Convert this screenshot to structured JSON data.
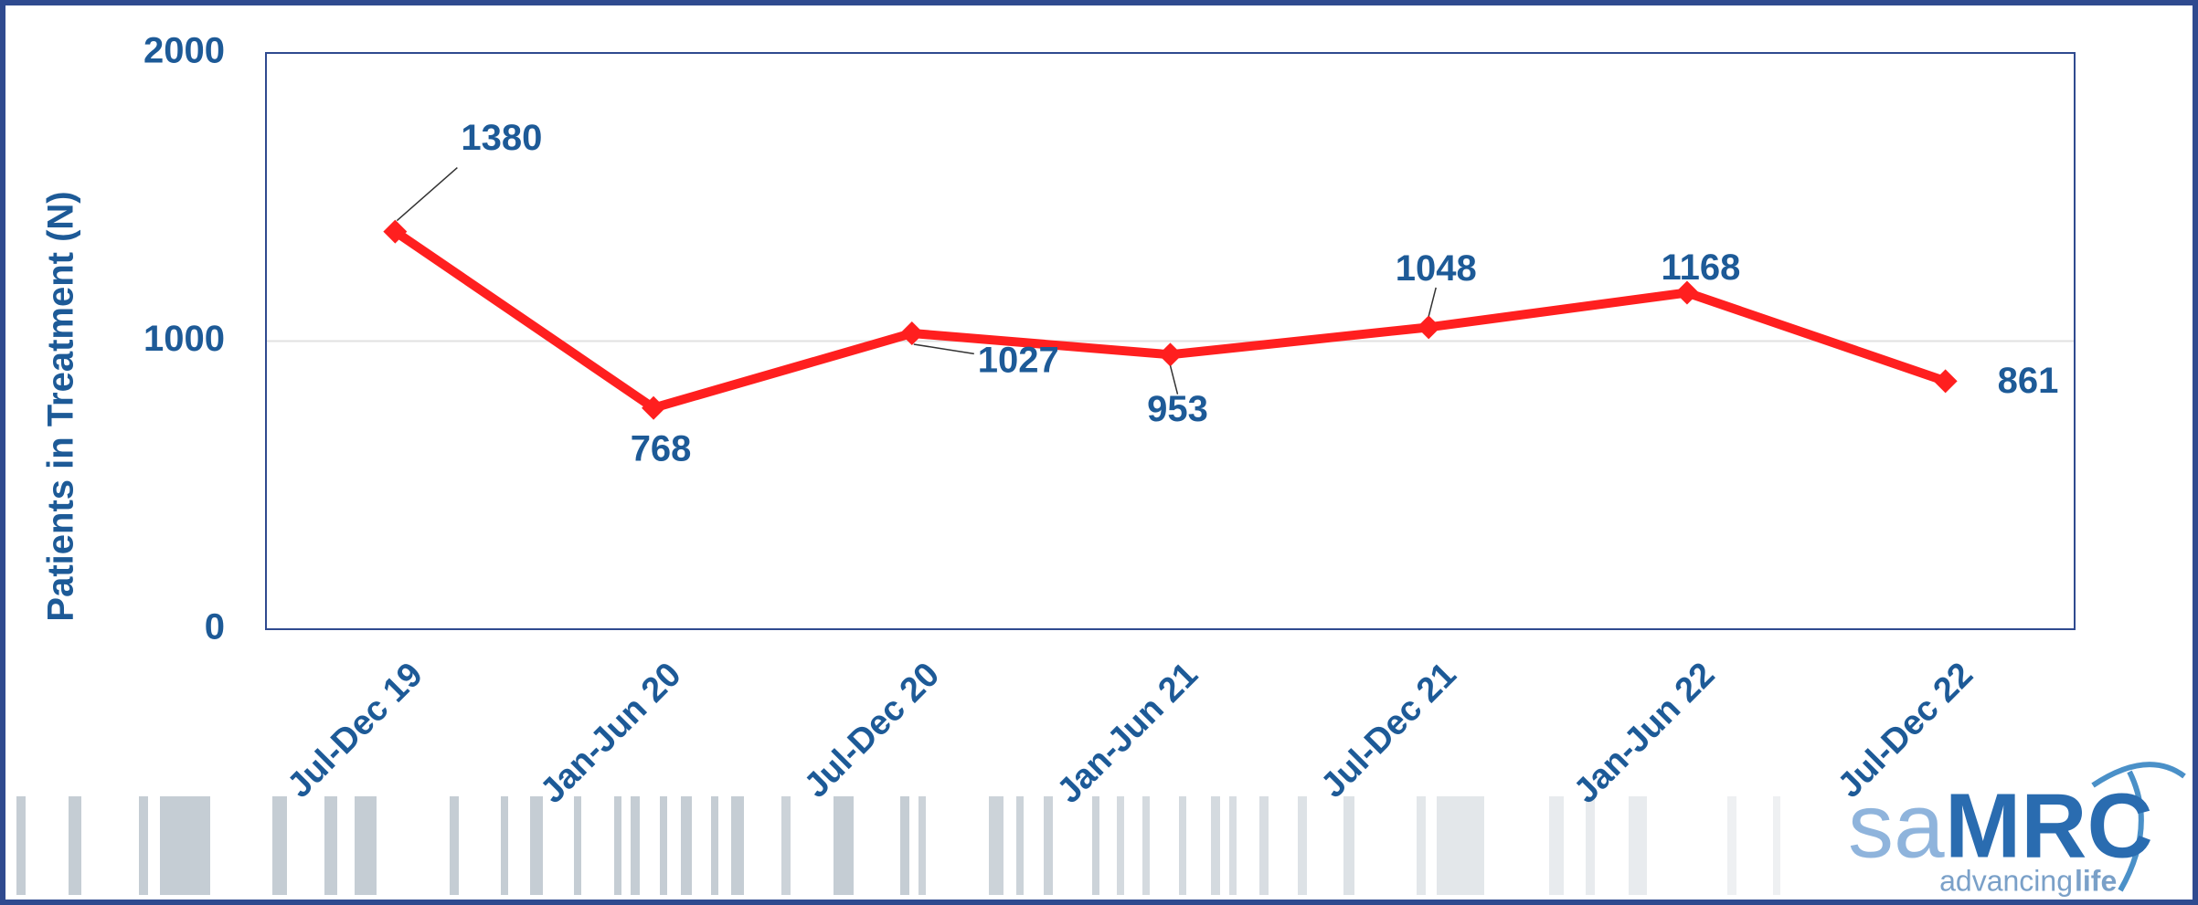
{
  "chart_data": {
    "type": "line",
    "y_label": "Patients in Treatment (N)",
    "categories": [
      "Jul-Dec 19",
      "Jan-Jun 20",
      "Jul-Dec 20",
      "Jan-Jun 21",
      "Jul-Dec 21",
      "Jan-Jun 22",
      "Jul-Dec 22"
    ],
    "values": [
      1380,
      768,
      1027,
      953,
      1048,
      1168,
      861
    ],
    "color": "#ff1f1f",
    "ylim": [
      0,
      2000
    ],
    "yticks": [
      0,
      1000,
      2000
    ],
    "grid": true
  },
  "logo": {
    "prefix": "sa",
    "name": "MRC",
    "tagline_start": "advancing",
    "tagline_end": "life"
  }
}
